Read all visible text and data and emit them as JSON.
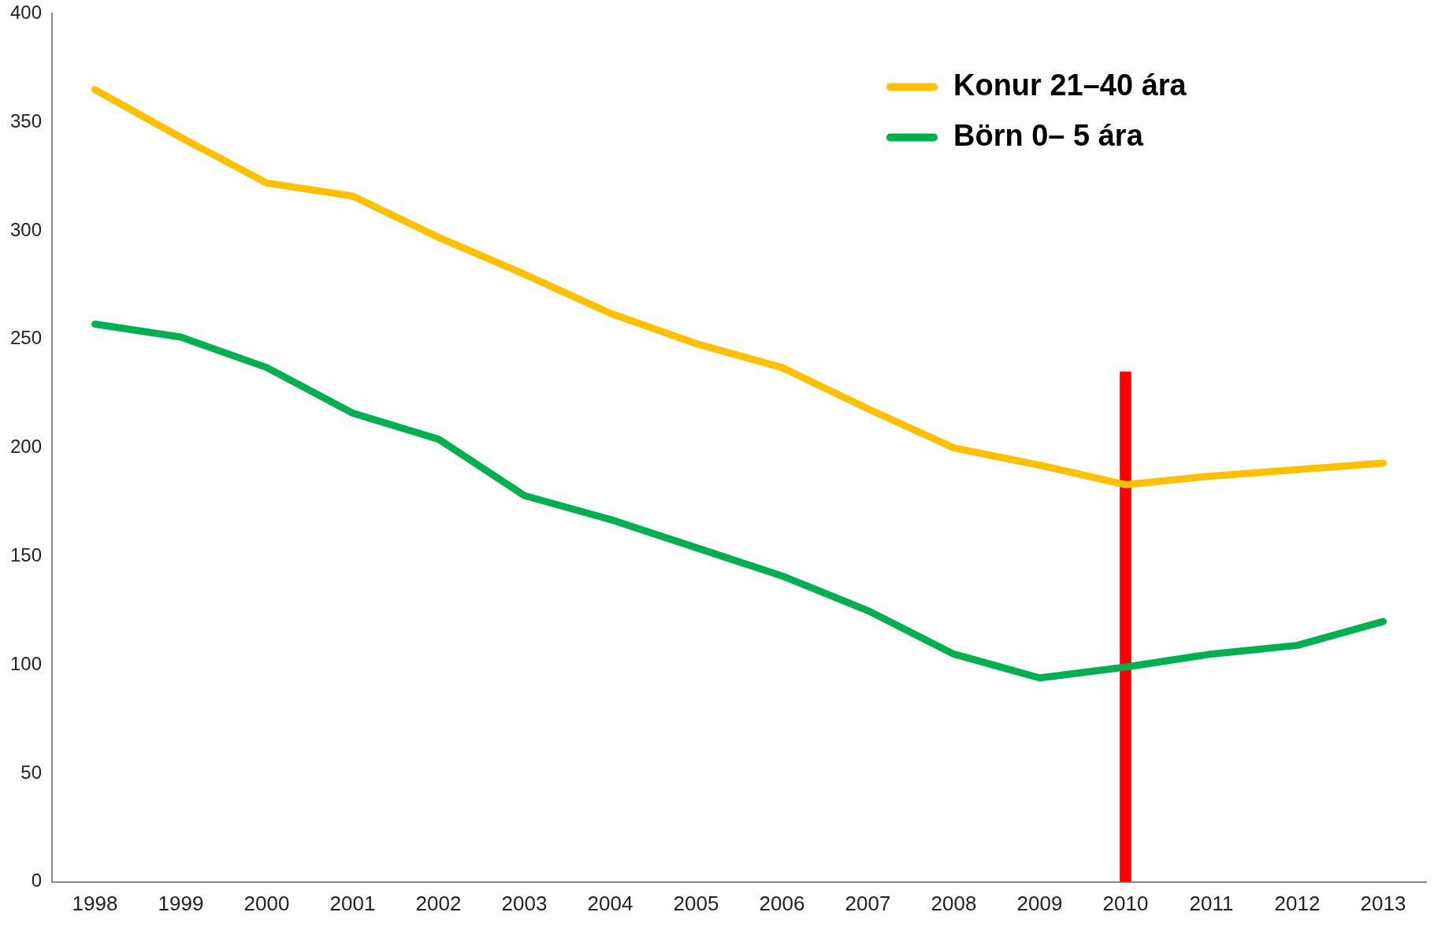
{
  "chart_data": {
    "type": "line",
    "categories": [
      "1998",
      "1999",
      "2000",
      "2001",
      "2002",
      "2003",
      "2004",
      "2005",
      "2006",
      "2007",
      "2008",
      "2009",
      "2010",
      "2011",
      "2012",
      "2013"
    ],
    "series": [
      {
        "name": "Konur 21–40 ára",
        "color": "#ffc000",
        "values": [
          365,
          343,
          322,
          316,
          297,
          280,
          262,
          248,
          237,
          218,
          200,
          192,
          183,
          187,
          190,
          193
        ]
      },
      {
        "name": "Börn 0– 5 ára",
        "color": "#00b050",
        "values": [
          257,
          251,
          237,
          216,
          204,
          178,
          167,
          154,
          141,
          125,
          105,
          94,
          99,
          105,
          109,
          120
        ]
      },
      {
        "type": "bar",
        "color": "#ff0000",
        "values": [
          null,
          null,
          null,
          null,
          null,
          null,
          null,
          null,
          null,
          null,
          null,
          null,
          235,
          null,
          null,
          null
        ]
      }
    ],
    "ylim": [
      0,
      400
    ],
    "yticks": [
      0,
      50,
      100,
      150,
      200,
      250,
      300,
      350,
      400
    ],
    "grid": false,
    "legend": "top right",
    "marker": "none",
    "line_style": "solid"
  }
}
